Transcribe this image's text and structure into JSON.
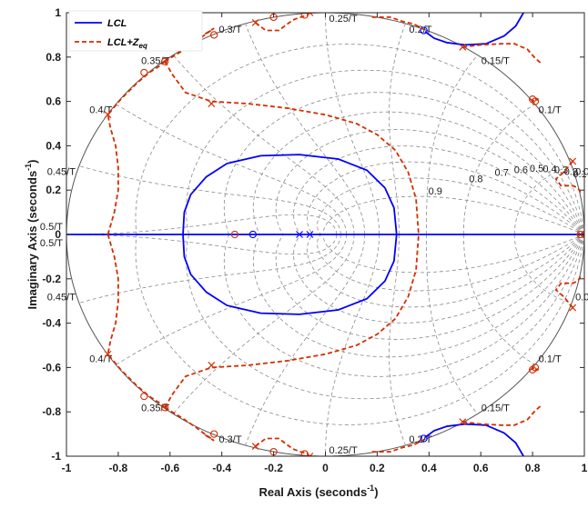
{
  "chart_data": {
    "type": "line",
    "title": "",
    "xlabel": "Real Axis (seconds",
    "ylabel": "Imaginary Axis (seconds",
    "label_superscript": "-1",
    "xlim": [
      -1,
      1
    ],
    "ylim": [
      -1,
      1
    ],
    "x_ticks": [
      "-1",
      "-0.8",
      "-0.6",
      "-0.4",
      "-0.2",
      "0",
      "0.2",
      "0.4",
      "0.6",
      "0.8",
      "1"
    ],
    "y_ticks": [
      "-1",
      "-0.8",
      "-0.6",
      "-0.4",
      "-0.2",
      "0",
      "0.2",
      "0.4",
      "0.6",
      "0.8",
      "1"
    ],
    "grid": true,
    "legend": {
      "position": "top-left",
      "entries": [
        {
          "name": "LCL",
          "color": "#0000ff",
          "style": "solid"
        },
        {
          "name": "LCL+Z",
          "subscript": "eq",
          "color": "#d62d00",
          "style": "dashed"
        }
      ]
    },
    "zgrid": {
      "damping": [
        0.1,
        0.2,
        0.3,
        0.4,
        0.5,
        0.6,
        0.7,
        0.8,
        0.9
      ],
      "damping_labels": [
        "0.1",
        "0.2",
        "0.3",
        "0.4",
        "0.5",
        "0.6",
        "0.7",
        "0.8",
        "0.9"
      ],
      "wn": [
        0.05,
        0.1,
        0.15,
        0.2,
        0.25,
        0.3,
        0.35,
        0.4,
        0.45,
        0.5
      ],
      "wn_labels": [
        "0.05/T",
        "0.1/T",
        "0.15/T",
        "0.2/T",
        "0.25/T",
        "0.3/T",
        "0.35/T",
        "0.4/T",
        "0.45/T",
        "0.5/T"
      ]
    },
    "series": [
      {
        "name": "LCL",
        "color": "#0000ff",
        "dash": "",
        "segments": [
          [
            [
              -0.55,
              0
            ],
            [
              -0.545,
              0.1
            ],
            [
              -0.52,
              0.18
            ],
            [
              -0.46,
              0.26
            ],
            [
              -0.38,
              0.32
            ],
            [
              -0.25,
              0.355
            ],
            [
              -0.1,
              0.36
            ],
            [
              0.05,
              0.34
            ],
            [
              0.16,
              0.29
            ],
            [
              0.23,
              0.21
            ],
            [
              0.265,
              0.12
            ],
            [
              0.275,
              0
            ]
          ],
          [
            [
              -0.55,
              0
            ],
            [
              -0.545,
              -0.1
            ],
            [
              -0.52,
              -0.18
            ],
            [
              -0.46,
              -0.26
            ],
            [
              -0.38,
              -0.32
            ],
            [
              -0.25,
              -0.355
            ],
            [
              -0.1,
              -0.36
            ],
            [
              0.05,
              -0.34
            ],
            [
              0.16,
              -0.29
            ],
            [
              0.23,
              -0.21
            ],
            [
              0.265,
              -0.12
            ],
            [
              0.275,
              0
            ]
          ],
          [
            [
              0.385,
              0.915
            ],
            [
              0.42,
              0.885
            ],
            [
              0.47,
              0.865
            ],
            [
              0.54,
              0.855
            ],
            [
              0.62,
              0.86
            ],
            [
              0.69,
              0.895
            ],
            [
              0.735,
              0.94
            ],
            [
              0.765,
              1.0
            ]
          ],
          [
            [
              0.385,
              -0.915
            ],
            [
              0.42,
              -0.885
            ],
            [
              0.47,
              -0.865
            ],
            [
              0.54,
              -0.855
            ],
            [
              0.62,
              -0.86
            ],
            [
              0.69,
              -0.895
            ],
            [
              0.735,
              -0.94
            ],
            [
              0.765,
              -1.0
            ]
          ],
          [
            [
              -1,
              0
            ],
            [
              1,
              0
            ]
          ]
        ],
        "poles": [
          [
            -0.1,
            0
          ],
          [
            -0.06,
            0
          ]
        ],
        "zeros": [
          [
            -0.28,
            0
          ],
          [
            0.38,
            0.92
          ],
          [
            0.38,
            -0.92
          ]
        ]
      },
      {
        "name": "LCL+Zeq",
        "color": "#d62d00",
        "dash": "5,3",
        "segments": [
          [
            [
              -0.84,
              0
            ],
            [
              -0.815,
              0.1
            ],
            [
              -0.8,
              0.2
            ],
            [
              -0.8,
              0.3
            ],
            [
              -0.81,
              0.4
            ],
            [
              -0.83,
              0.48
            ],
            [
              -0.84,
              0.54
            ],
            [
              -0.79,
              0.61
            ],
            [
              -0.73,
              0.68
            ],
            [
              -0.68,
              0.73
            ],
            [
              -0.64,
              0.76
            ],
            [
              -0.62,
              0.78
            ]
          ],
          [
            [
              -0.84,
              0
            ],
            [
              -0.815,
              -0.1
            ],
            [
              -0.8,
              -0.2
            ],
            [
              -0.8,
              -0.3
            ],
            [
              -0.81,
              -0.4
            ],
            [
              -0.83,
              -0.48
            ],
            [
              -0.84,
              -0.54
            ],
            [
              -0.79,
              -0.61
            ],
            [
              -0.73,
              -0.68
            ],
            [
              -0.68,
              -0.73
            ],
            [
              -0.64,
              -0.76
            ],
            [
              -0.62,
              -0.78
            ]
          ],
          [
            [
              -0.62,
              0.78
            ],
            [
              -0.59,
              0.72
            ],
            [
              -0.54,
              0.64
            ],
            [
              -0.44,
              0.6
            ],
            [
              -0.3,
              0.59
            ],
            [
              -0.15,
              0.57
            ],
            [
              0.0,
              0.54
            ],
            [
              0.12,
              0.5
            ],
            [
              0.2,
              0.45
            ],
            [
              0.27,
              0.38
            ],
            [
              0.32,
              0.28
            ],
            [
              0.35,
              0.16
            ],
            [
              0.36,
              0
            ]
          ],
          [
            [
              -0.62,
              -0.78
            ],
            [
              -0.59,
              -0.72
            ],
            [
              -0.54,
              -0.64
            ],
            [
              -0.44,
              -0.6
            ],
            [
              -0.3,
              -0.59
            ],
            [
              -0.15,
              -0.57
            ],
            [
              0.0,
              -0.54
            ],
            [
              0.12,
              -0.5
            ],
            [
              0.2,
              -0.45
            ],
            [
              0.27,
              -0.38
            ],
            [
              0.32,
              -0.28
            ],
            [
              0.35,
              -0.16
            ],
            [
              0.36,
              0
            ]
          ],
          [
            [
              -0.62,
              0.78
            ],
            [
              -0.55,
              0.83
            ],
            [
              -0.5,
              0.87
            ],
            [
              -0.46,
              0.905
            ],
            [
              -0.43,
              0.93
            ],
            [
              -0.47,
              0.9
            ]
          ],
          [
            [
              -0.62,
              -0.78
            ],
            [
              -0.55,
              -0.83
            ],
            [
              -0.5,
              -0.87
            ],
            [
              -0.46,
              -0.905
            ],
            [
              -0.43,
              -0.93
            ],
            [
              -0.47,
              -0.9
            ]
          ],
          [
            [
              -0.27,
              0.955
            ],
            [
              -0.23,
              0.92
            ],
            [
              -0.18,
              0.92
            ],
            [
              -0.14,
              0.955
            ],
            [
              -0.12,
              0.97
            ],
            [
              -0.07,
              0.99
            ],
            [
              -0.06,
              1.0
            ]
          ],
          [
            [
              -0.27,
              -0.955
            ],
            [
              -0.23,
              -0.92
            ],
            [
              -0.18,
              -0.92
            ],
            [
              -0.14,
              -0.955
            ],
            [
              -0.12,
              -0.97
            ],
            [
              -0.07,
              -0.99
            ],
            [
              -0.06,
              -1.0
            ]
          ],
          [
            [
              0.18,
              0.98
            ],
            [
              0.25,
              0.98
            ],
            [
              0.3,
              0.96
            ],
            [
              0.34,
              0.95
            ],
            [
              0.38,
              0.925
            ]
          ],
          [
            [
              0.18,
              -0.98
            ],
            [
              0.25,
              -0.98
            ],
            [
              0.3,
              -0.96
            ],
            [
              0.34,
              -0.95
            ],
            [
              0.38,
              -0.925
            ]
          ],
          [
            [
              0.53,
              0.845
            ],
            [
              0.6,
              0.855
            ],
            [
              0.68,
              0.86
            ],
            [
              0.73,
              0.86
            ],
            [
              0.78,
              0.835
            ],
            [
              0.81,
              0.795
            ],
            [
              0.835,
              0.77
            ]
          ],
          [
            [
              0.53,
              -0.845
            ],
            [
              0.6,
              -0.855
            ],
            [
              0.68,
              -0.86
            ],
            [
              0.73,
              -0.86
            ],
            [
              0.78,
              -0.835
            ],
            [
              0.81,
              -0.795
            ],
            [
              0.835,
              -0.77
            ]
          ],
          [
            [
              0.79,
              0.61
            ],
            [
              0.81,
              0.6
            ],
            [
              0.82,
              0.61
            ],
            [
              0.8,
              0.62
            ]
          ],
          [
            [
              0.79,
              -0.61
            ],
            [
              0.81,
              -0.6
            ],
            [
              0.82,
              -0.61
            ],
            [
              0.8,
              -0.62
            ]
          ],
          [
            [
              0.955,
              0.33
            ],
            [
              0.92,
              0.28
            ],
            [
              0.89,
              0.25
            ],
            [
              0.91,
              0.22
            ],
            [
              0.955,
              0.22
            ],
            [
              0.975,
              0.21
            ],
            [
              0.99,
              0.18
            ]
          ],
          [
            [
              0.955,
              -0.33
            ],
            [
              0.92,
              -0.28
            ],
            [
              0.89,
              -0.25
            ],
            [
              0.91,
              -0.22
            ],
            [
              0.955,
              -0.22
            ],
            [
              0.975,
              -0.21
            ],
            [
              0.99,
              -0.18
            ]
          ]
        ],
        "poles": [
          [
            -0.84,
            0.54
          ],
          [
            -0.84,
            -0.54
          ],
          [
            -0.44,
            0.59
          ],
          [
            -0.44,
            -0.59
          ],
          [
            -0.27,
            0.955
          ],
          [
            -0.27,
            -0.955
          ],
          [
            -0.06,
            1.0
          ],
          [
            -0.06,
            -1.0
          ],
          [
            0.53,
            0.845
          ],
          [
            0.53,
            -0.845
          ],
          [
            0.955,
            0.33
          ],
          [
            0.955,
            -0.33
          ],
          [
            0.985,
            0
          ]
        ],
        "zeros": [
          [
            -0.43,
            0.9
          ],
          [
            -0.43,
            -0.9
          ],
          [
            -0.2,
            0.98
          ],
          [
            -0.2,
            -0.98
          ],
          [
            -0.08,
            0.99
          ],
          [
            -0.08,
            -0.99
          ],
          [
            -0.35,
            0
          ],
          [
            -0.62,
            0.78
          ],
          [
            -0.62,
            -0.78
          ],
          [
            -0.7,
            0.73
          ],
          [
            -0.7,
            -0.73
          ],
          [
            0.8,
            0.61
          ],
          [
            0.8,
            -0.61
          ],
          [
            0.81,
            0.6
          ],
          [
            0.81,
            -0.6
          ],
          [
            0.985,
            0
          ]
        ]
      }
    ]
  }
}
